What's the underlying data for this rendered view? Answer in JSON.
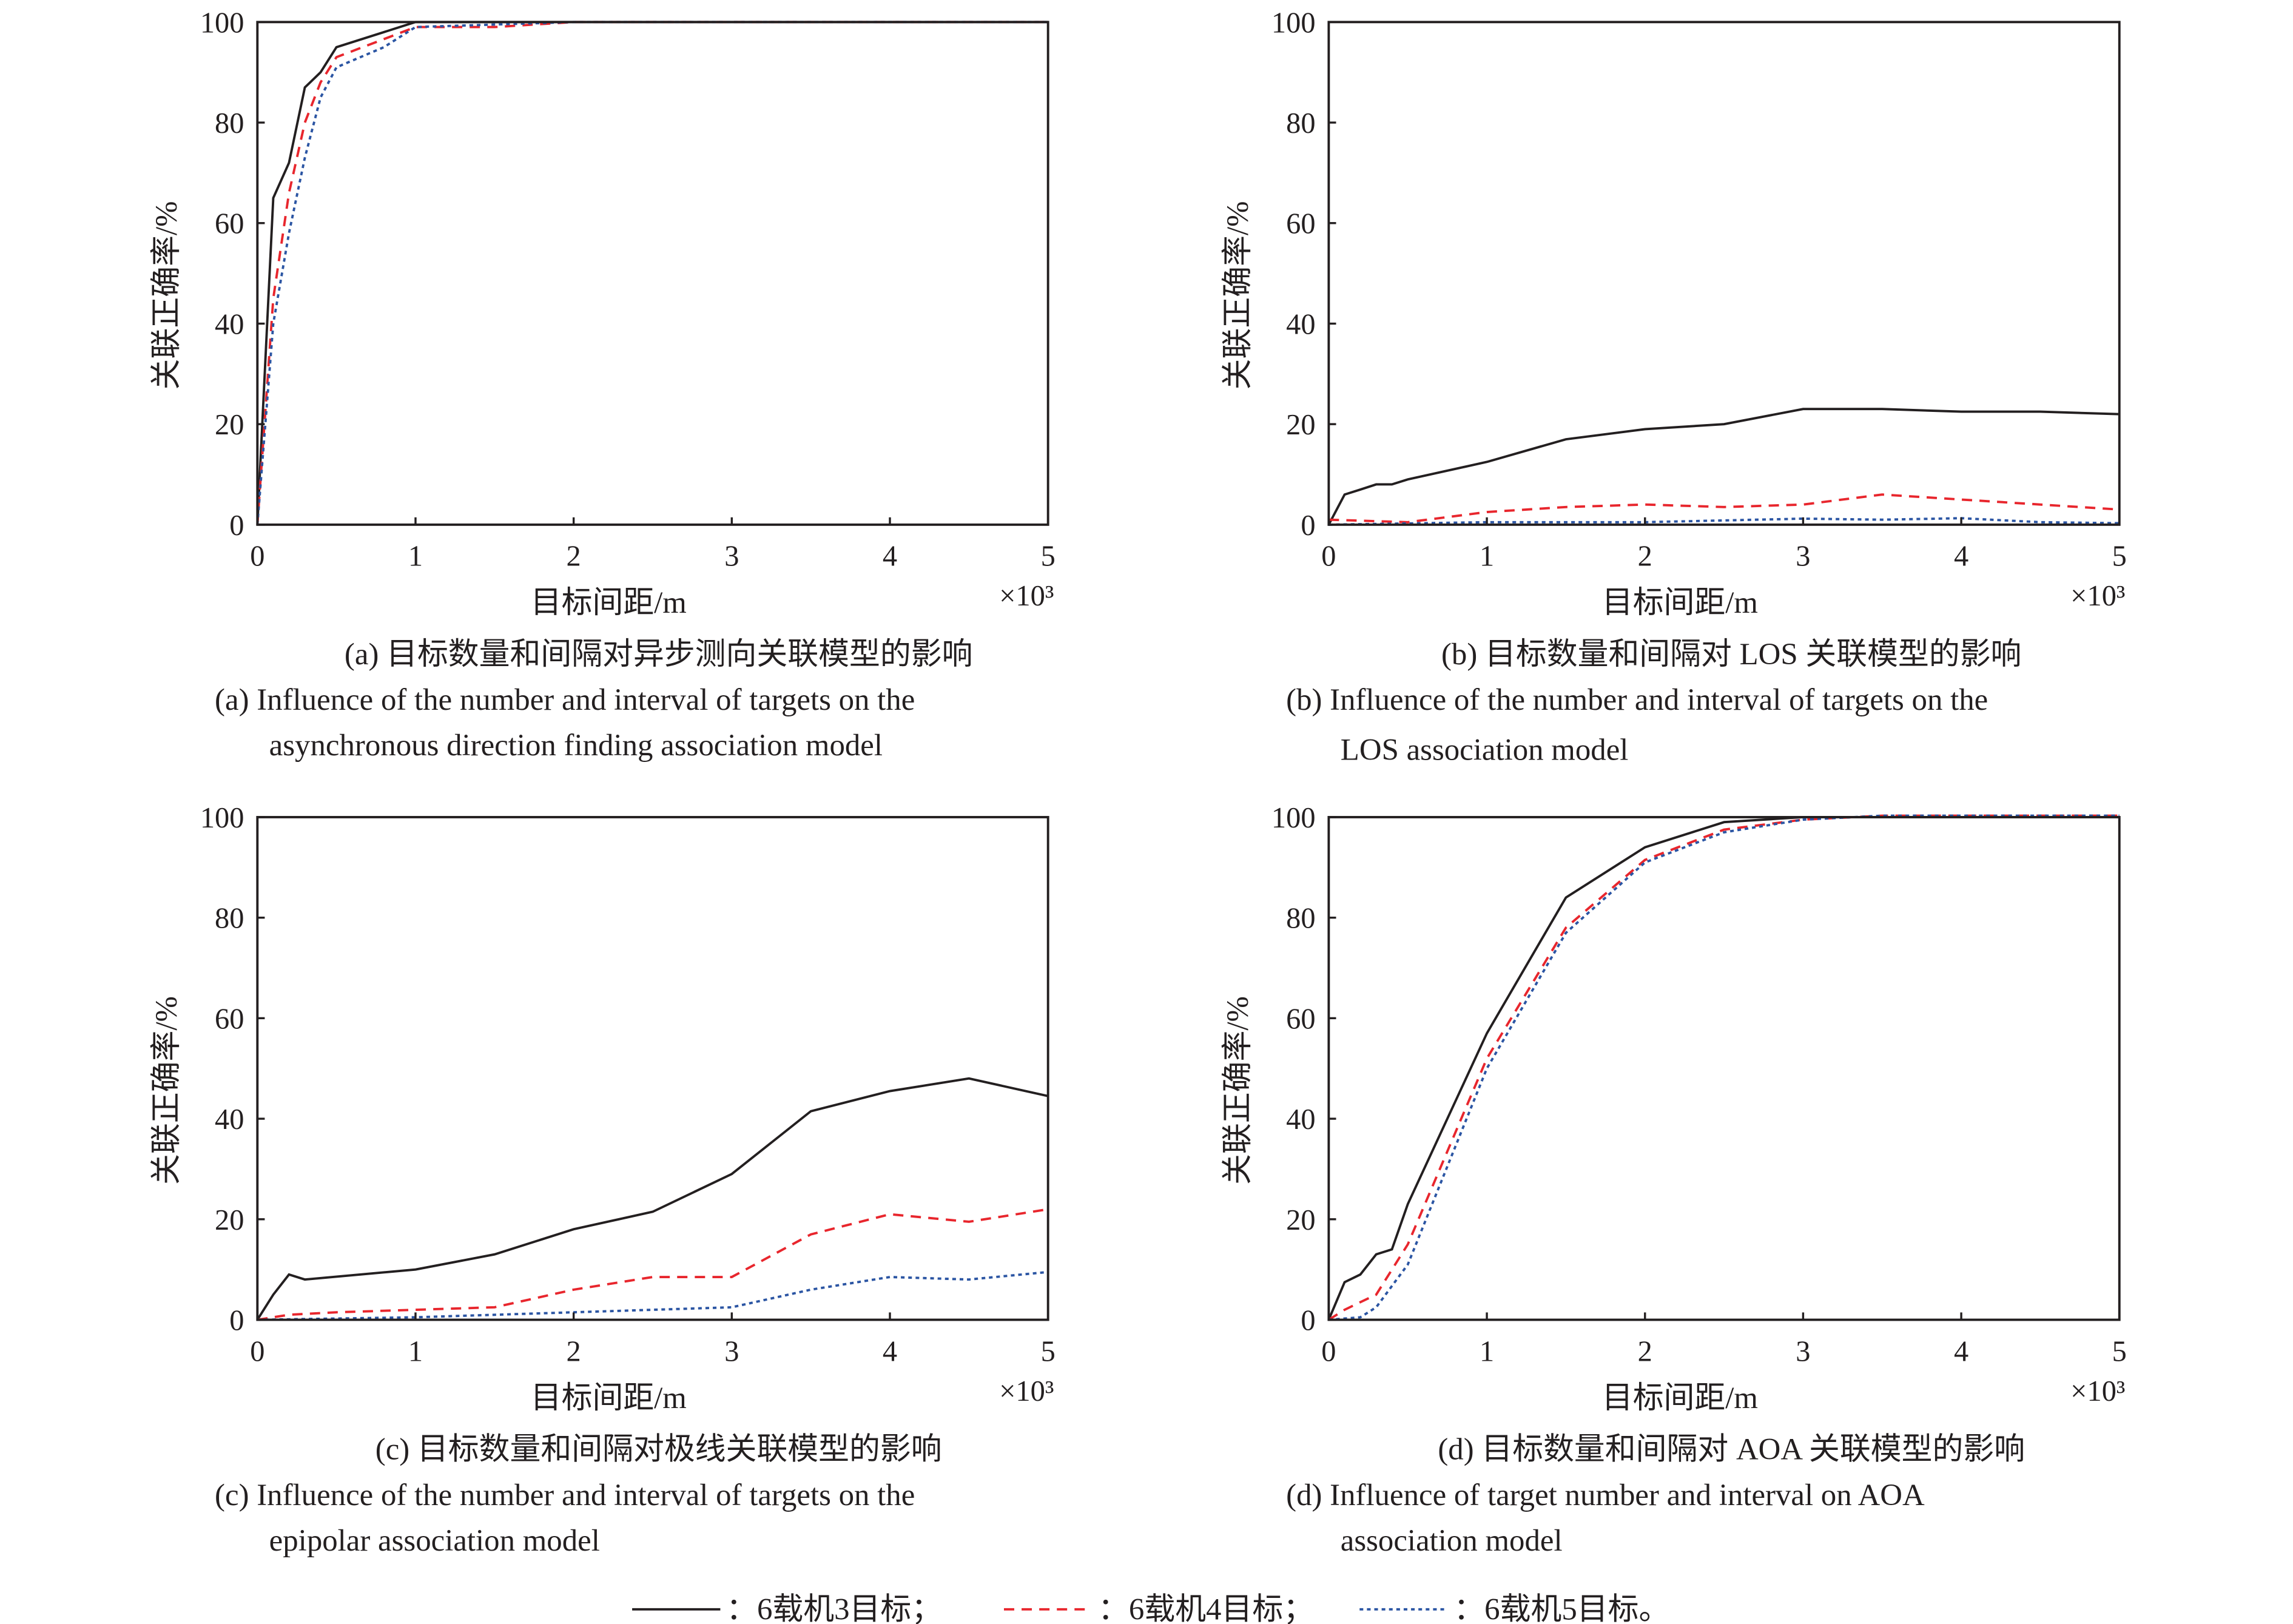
{
  "legend": [
    {
      "name": "：6载机3目标；",
      "color": "#231f20",
      "dash": "solid"
    },
    {
      "name": "：6载机4目标；",
      "color": "#e8262d",
      "dash": "dashed"
    },
    {
      "name": "：6载机5目标。",
      "color": "#2b55a3",
      "dash": "dotted"
    }
  ],
  "chart_data": [
    {
      "type": "line",
      "caption_cn": "(a) 目标数量和间隔对异步测向关联模型的影响",
      "caption_en": [
        "(a) Influence of the number and interval of targets on the",
        "asynchronous direction finding association model"
      ],
      "xlabel": "目标间距/m",
      "xscale": "×10³",
      "ylabel": "关联正确率/%",
      "xlim": [
        0,
        5
      ],
      "ylim": [
        0,
        100
      ],
      "xticks": [
        "0",
        "1",
        "2",
        "3",
        "4",
        "5"
      ],
      "yticks": [
        "0",
        "20",
        "40",
        "60",
        "80",
        "100"
      ],
      "series": [
        {
          "name": "6载机3目标",
          "x": [
            0,
            0.1,
            0.2,
            0.3,
            0.4,
            0.5,
            1,
            5
          ],
          "y": [
            0,
            65,
            72,
            87,
            90,
            95,
            100,
            100
          ]
        },
        {
          "name": "6载机4目标",
          "x": [
            0,
            0.1,
            0.2,
            0.3,
            0.4,
            0.5,
            1,
            1.5,
            2,
            5
          ],
          "y": [
            0,
            45,
            66,
            80,
            88,
            93,
            99,
            99,
            100,
            100
          ]
        },
        {
          "name": "6载机5目标",
          "x": [
            0,
            0.1,
            0.2,
            0.3,
            0.4,
            0.5,
            0.8,
            1,
            2,
            5
          ],
          "y": [
            0,
            40,
            58,
            73,
            85,
            91,
            95,
            99,
            100,
            100
          ]
        }
      ]
    },
    {
      "type": "line",
      "caption_cn": "(b) 目标数量和间隔对 LOS 关联模型的影响",
      "caption_en": [
        "(b) Influence of the number and interval of targets on the",
        "LOS association model"
      ],
      "xlabel": "目标间距/m",
      "xscale": "×10³",
      "ylabel": "关联正确率/%",
      "xlim": [
        0,
        5
      ],
      "ylim": [
        0,
        100
      ],
      "xticks": [
        "0",
        "1",
        "2",
        "3",
        "4",
        "5"
      ],
      "yticks": [
        "0",
        "20",
        "40",
        "60",
        "80",
        "100"
      ],
      "series": [
        {
          "name": "6载机3目标",
          "x": [
            0,
            0.1,
            0.2,
            0.3,
            0.4,
            0.5,
            1,
            1.5,
            2,
            2.5,
            3,
            3.5,
            4,
            4.5,
            5
          ],
          "y": [
            0,
            6,
            7,
            8,
            8,
            9,
            12.5,
            17,
            19,
            20,
            23,
            23,
            22.5,
            22.5,
            22
          ]
        },
        {
          "name": "6载机4目标",
          "x": [
            0,
            0.5,
            1,
            1.5,
            2,
            2.5,
            3,
            3.5,
            4,
            5
          ],
          "y": [
            1,
            0.5,
            2.5,
            3.5,
            4,
            3.5,
            4,
            6,
            5,
            3
          ]
        },
        {
          "name": "6载机5目标",
          "x": [
            0,
            1,
            2,
            3,
            3.5,
            4,
            4.5,
            5
          ],
          "y": [
            0,
            0.5,
            0.5,
            1.2,
            1,
            1.3,
            0.5,
            0.3
          ]
        }
      ]
    },
    {
      "type": "line",
      "caption_cn": "(c) 目标数量和间隔对极线关联模型的影响",
      "caption_en": [
        "(c) Influence of the number and interval of targets on the",
        "epipolar association model"
      ],
      "xlabel": "目标间距/m",
      "xscale": "×10³",
      "ylabel": "关联正确率/%",
      "xlim": [
        0,
        5
      ],
      "ylim": [
        0,
        100
      ],
      "xticks": [
        "0",
        "1",
        "2",
        "3",
        "4",
        "5"
      ],
      "yticks": [
        "0",
        "20",
        "40",
        "60",
        "80",
        "100"
      ],
      "series": [
        {
          "name": "6载机3目标",
          "x": [
            0,
            0.1,
            0.2,
            0.3,
            1,
            1.5,
            2,
            2.5,
            3,
            3.5,
            4,
            4.5,
            5
          ],
          "y": [
            0,
            5,
            9,
            8,
            10,
            13,
            18,
            21.5,
            29,
            41.5,
            45.5,
            48,
            44.5
          ]
        },
        {
          "name": "6载机4目标",
          "x": [
            0,
            0.2,
            0.5,
            1,
            1.5,
            2,
            2.5,
            3,
            3.5,
            4,
            4.5,
            5
          ],
          "y": [
            0,
            1,
            1.5,
            2,
            2.5,
            6,
            8.5,
            8.5,
            17,
            21,
            19.5,
            22
          ]
        },
        {
          "name": "6载机5目标",
          "x": [
            0,
            1,
            1.5,
            2,
            2.5,
            3,
            3.5,
            4,
            4.5,
            5
          ],
          "y": [
            0,
            0.5,
            1,
            1.5,
            2,
            2.5,
            6,
            8.5,
            8,
            9.5
          ]
        }
      ]
    },
    {
      "type": "line",
      "caption_cn": "(d) 目标数量和间隔对 AOA 关联模型的影响",
      "caption_en": [
        "(d) Influence of target number and interval on AOA",
        "association model"
      ],
      "xlabel": "目标间距/m",
      "xscale": "×10³",
      "ylabel": "关联正确率/%",
      "xlim": [
        0,
        5
      ],
      "ylim": [
        0,
        100
      ],
      "xticks": [
        "0",
        "1",
        "2",
        "3",
        "4",
        "5"
      ],
      "yticks": [
        "0",
        "20",
        "40",
        "60",
        "80",
        "100"
      ],
      "series": [
        {
          "name": "6载机3目标",
          "x": [
            0,
            0.1,
            0.2,
            0.3,
            0.4,
            0.5,
            1,
            1.5,
            2,
            2.5,
            3,
            5
          ],
          "y": [
            0,
            7.5,
            9,
            13,
            14,
            23,
            57,
            84,
            94,
            99,
            100,
            100
          ]
        },
        {
          "name": "6载机4目标",
          "x": [
            0,
            0.1,
            0.2,
            0.3,
            0.5,
            1,
            1.5,
            2,
            2.5,
            3,
            3.5,
            5
          ],
          "y": [
            0,
            2,
            3.5,
            5,
            15,
            52,
            78,
            91.5,
            97.5,
            99.5,
            100.5,
            100.5
          ]
        },
        {
          "name": "6载机5目标",
          "x": [
            0,
            0.2,
            0.3,
            0.5,
            1,
            1.5,
            2,
            2.5,
            3,
            3.5,
            5
          ],
          "y": [
            0,
            0.5,
            2.5,
            11,
            50,
            77,
            91,
            97,
            99.5,
            100.5,
            100.5
          ]
        }
      ]
    }
  ]
}
